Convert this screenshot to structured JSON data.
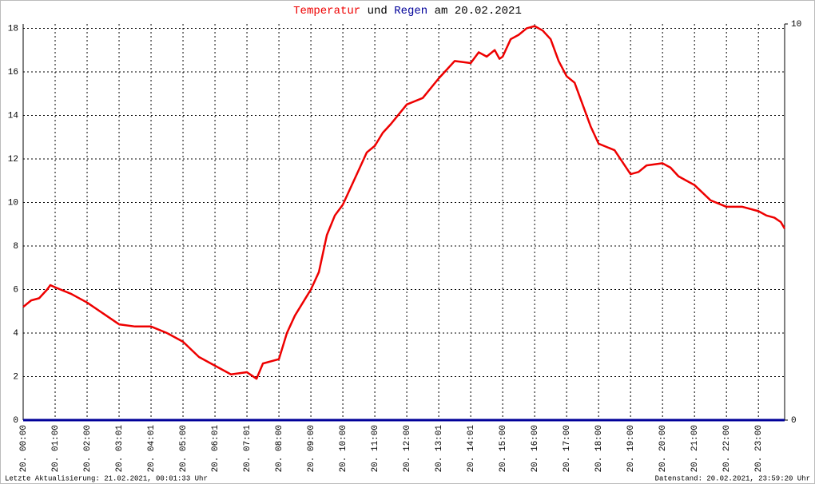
{
  "chart_data": {
    "type": "line",
    "title_connector": "und",
    "title_date": "am 20.02.2021",
    "footer_left": "Letzte Aktualisierung: 21.02.2021, 00:01:33 Uhr",
    "footer_right": "Datenstand: 20.02.2021, 23:59:20 Uhr",
    "xlim": [
      0,
      23.82
    ],
    "xticks": [
      {
        "value": 0,
        "label": "20. 00:00"
      },
      {
        "value": 1,
        "label": "20. 01:00"
      },
      {
        "value": 2,
        "label": "20. 02:00"
      },
      {
        "value": 3,
        "label": "20. 03:01"
      },
      {
        "value": 4,
        "label": "20. 04:01"
      },
      {
        "value": 5,
        "label": "20. 05:00"
      },
      {
        "value": 6,
        "label": "20. 06:01"
      },
      {
        "value": 7,
        "label": "20. 07:01"
      },
      {
        "value": 8,
        "label": "20. 08:00"
      },
      {
        "value": 9,
        "label": "20. 09:00"
      },
      {
        "value": 10,
        "label": "20. 10:00"
      },
      {
        "value": 11,
        "label": "20. 11:00"
      },
      {
        "value": 12,
        "label": "20. 12:00"
      },
      {
        "value": 13,
        "label": "20. 13:01"
      },
      {
        "value": 14,
        "label": "20. 14:01"
      },
      {
        "value": 15,
        "label": "20. 15:00"
      },
      {
        "value": 16,
        "label": "20. 16:00"
      },
      {
        "value": 17,
        "label": "20. 17:00"
      },
      {
        "value": 18,
        "label": "20. 18:00"
      },
      {
        "value": 19,
        "label": "20. 19:00"
      },
      {
        "value": 20,
        "label": "20. 20:00"
      },
      {
        "value": 21,
        "label": "20. 21:00"
      },
      {
        "value": 22,
        "label": "20. 22:00"
      },
      {
        "value": 23,
        "label": "20. 23:00"
      }
    ],
    "ylim": [
      0,
      18.2
    ],
    "yticks": [
      0,
      2,
      4,
      6,
      8,
      10,
      12,
      14,
      16,
      18
    ],
    "y2lim": [
      0,
      10
    ],
    "y2ticks": [
      0,
      10
    ],
    "grid": true,
    "series": [
      {
        "name": "Temperatur",
        "color": "#ee0000",
        "x": [
          0,
          0.25,
          0.5,
          0.75,
          0.85,
          1,
          1.5,
          2,
          2.5,
          3,
          3.5,
          4,
          4.5,
          5,
          5.5,
          6,
          6.5,
          7,
          7.3,
          7.5,
          8,
          8.25,
          8.5,
          9,
          9.25,
          9.5,
          9.75,
          10,
          10.5,
          10.75,
          11,
          11.25,
          11.5,
          12,
          12.5,
          13,
          13.25,
          13.5,
          14,
          14.25,
          14.5,
          14.75,
          14.9,
          15,
          15.25,
          15.5,
          15.75,
          16,
          16.25,
          16.5,
          16.75,
          17,
          17.25,
          17.5,
          17.75,
          18,
          18.5,
          19,
          19.25,
          19.5,
          20,
          20.25,
          20.5,
          20.75,
          21,
          21.5,
          22,
          22.5,
          23,
          23.25,
          23.5,
          23.7,
          23.82
        ],
        "values": [
          5.2,
          5.5,
          5.6,
          6.0,
          6.2,
          6.1,
          5.8,
          5.4,
          4.9,
          4.4,
          4.3,
          4.3,
          4.0,
          3.6,
          2.9,
          2.5,
          2.1,
          2.2,
          1.9,
          2.6,
          2.8,
          4.0,
          4.8,
          6.0,
          6.8,
          8.5,
          9.4,
          9.9,
          11.5,
          12.3,
          12.6,
          13.2,
          13.6,
          14.5,
          14.8,
          15.7,
          16.1,
          16.5,
          16.4,
          16.9,
          16.7,
          17.0,
          16.6,
          16.7,
          17.5,
          17.7,
          18.0,
          18.1,
          17.9,
          17.5,
          16.5,
          15.8,
          15.5,
          14.5,
          13.5,
          12.7,
          12.4,
          11.3,
          11.4,
          11.7,
          11.8,
          11.6,
          11.2,
          11.0,
          10.8,
          10.1,
          9.8,
          9.8,
          9.6,
          9.4,
          9.3,
          9.1,
          8.8
        ]
      },
      {
        "name": "Regen",
        "color": "#000099",
        "axis": "y2",
        "x": [
          0,
          23.82
        ],
        "values": [
          0,
          0
        ]
      }
    ]
  }
}
